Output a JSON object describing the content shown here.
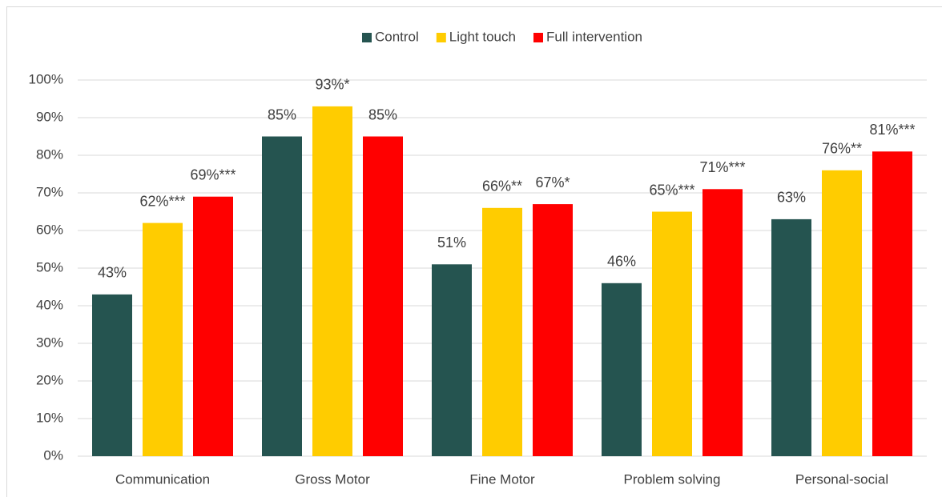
{
  "chart_data": {
    "type": "bar",
    "categories": [
      "Communication",
      "Gross Motor",
      "Fine Motor",
      "Problem solving",
      "Personal-social"
    ],
    "series": [
      {
        "name": "Control",
        "color": "#255450",
        "values": [
          43,
          85,
          51,
          46,
          63
        ],
        "value_labels": [
          "43%",
          "85%",
          "51%",
          "46%",
          "63%"
        ]
      },
      {
        "name": "Light touch",
        "color": "#ffcc00",
        "values": [
          62,
          93,
          66,
          65,
          76
        ],
        "value_labels": [
          "62%***",
          "93%*",
          "66%**",
          "65%***",
          "76%**"
        ]
      },
      {
        "name": "Full intervention",
        "color": "#ff0000",
        "values": [
          69,
          85,
          67,
          71,
          81
        ],
        "value_labels": [
          "69%***",
          "85%",
          "67%*",
          "71%***",
          "81%***"
        ]
      }
    ],
    "ylim": [
      0,
      100
    ],
    "yticks": [
      {
        "value": 0,
        "label": "0%"
      },
      {
        "value": 10,
        "label": "10%"
      },
      {
        "value": 20,
        "label": "20%"
      },
      {
        "value": 30,
        "label": "30%"
      },
      {
        "value": 40,
        "label": "40%"
      },
      {
        "value": 50,
        "label": "50%"
      },
      {
        "value": 60,
        "label": "60%"
      },
      {
        "value": 70,
        "label": "70%"
      },
      {
        "value": 80,
        "label": "80%"
      },
      {
        "value": 90,
        "label": "90%"
      },
      {
        "value": 100,
        "label": "100%"
      }
    ],
    "grid": true,
    "legend": "top"
  }
}
